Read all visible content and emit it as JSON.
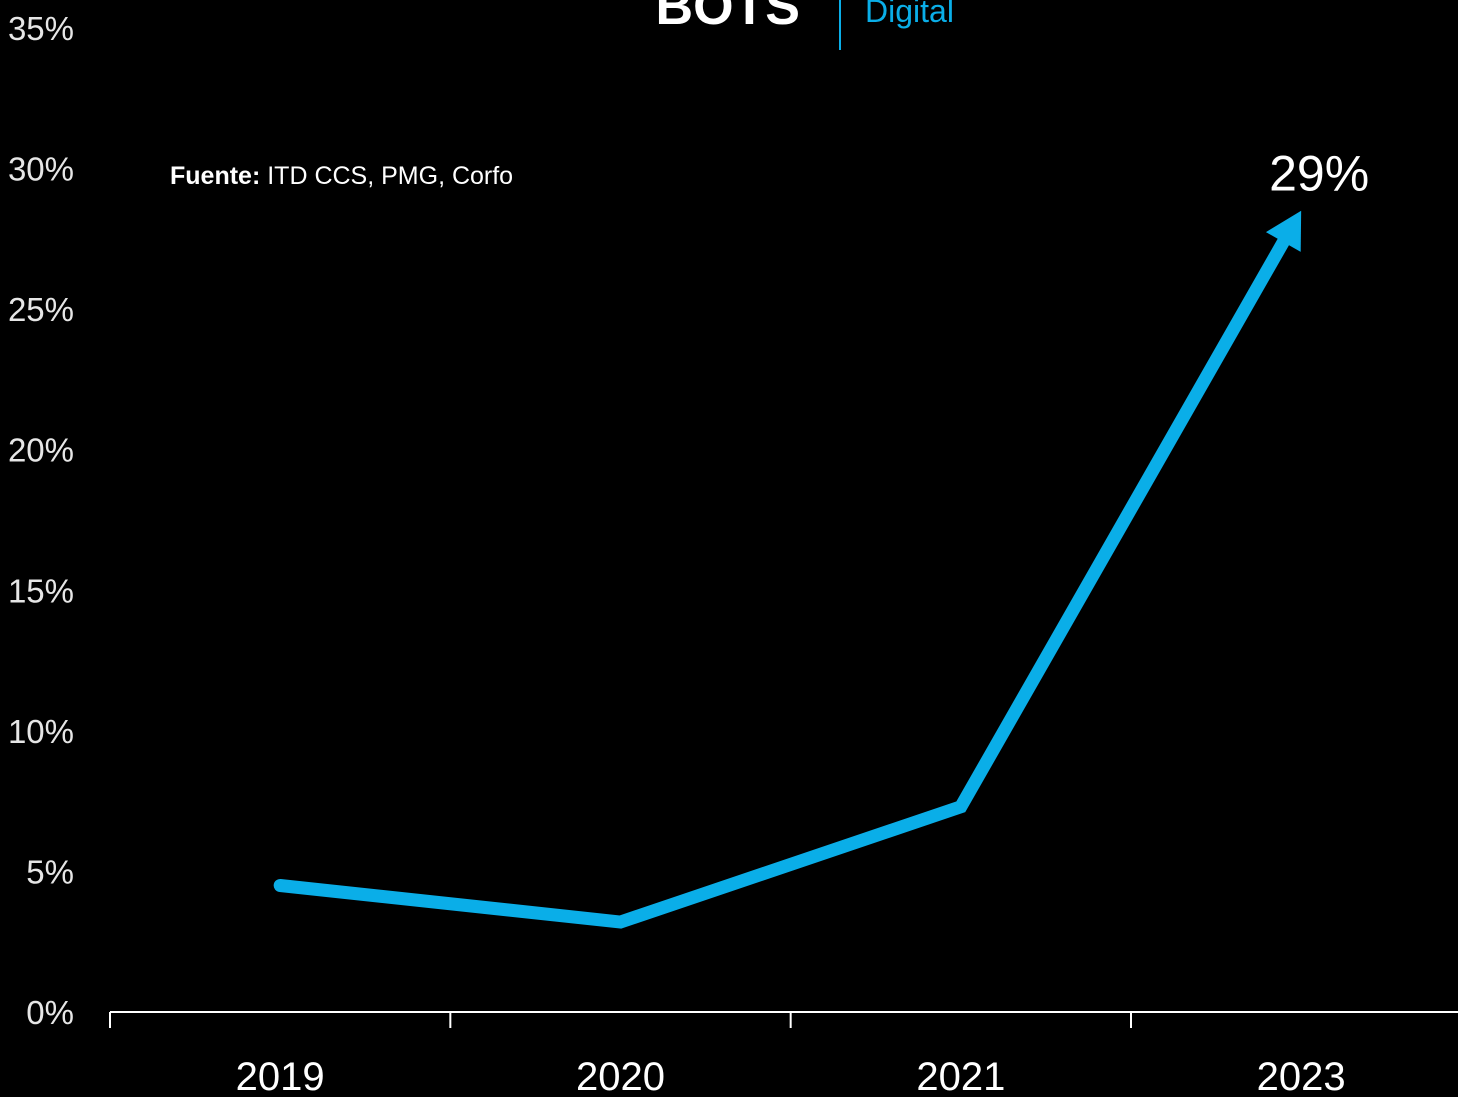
{
  "brand": {
    "title": "BOTS",
    "subtitle": "Digital"
  },
  "source": {
    "label": "Fuente:",
    "text": " ITD CCS, PMG, Corfo"
  },
  "chart_data": {
    "type": "line",
    "categories": [
      "2019",
      "2020",
      "2021",
      "2023"
    ],
    "values": [
      4.5,
      3.2,
      7.3,
      28.5
    ],
    "end_label": "29%",
    "ylim": [
      0,
      35
    ],
    "yticks": [
      0,
      5,
      10,
      15,
      20,
      25,
      30,
      35
    ],
    "ytick_labels": [
      "0%",
      "5%",
      "10%",
      "15%",
      "20%",
      "25%",
      "30%",
      "35%"
    ],
    "grid": false,
    "line_color": "#0aaee8",
    "arrow_at_end": true
  },
  "colors": {
    "background": "#000000",
    "accent": "#0aaee8",
    "text": "#ffffff"
  }
}
